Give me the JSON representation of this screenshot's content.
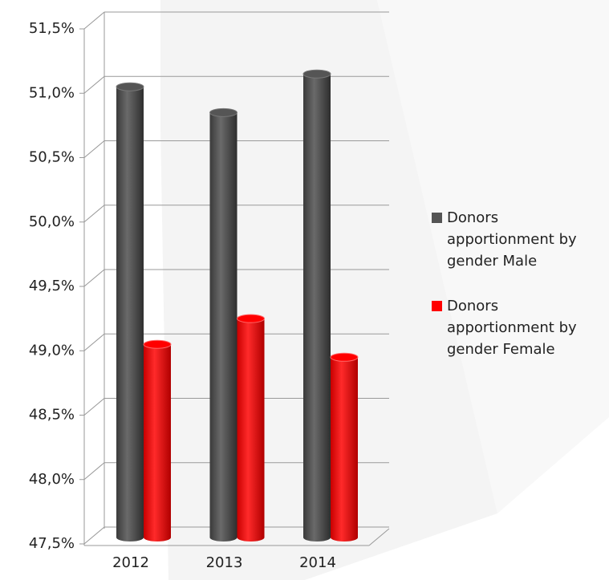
{
  "chart_data": {
    "type": "bar3d",
    "categories": [
      "2012",
      "2013",
      "2014"
    ],
    "series": [
      {
        "name": "Donors apportionment by gender Male",
        "color": "#555555",
        "values": [
          51.0,
          50.8,
          51.1
        ]
      },
      {
        "name": "Donors apportionment by gender Female",
        "color": "#ff0000",
        "values": [
          49.0,
          49.2,
          48.9
        ]
      }
    ],
    "ylim": [
      47.5,
      51.5
    ],
    "yticks": [
      {
        "value": 47.5,
        "label": "47,5%"
      },
      {
        "value": 48.0,
        "label": "48,0%"
      },
      {
        "value": 48.5,
        "label": "48,5%"
      },
      {
        "value": 49.0,
        "label": "49,0%"
      },
      {
        "value": 49.5,
        "label": "49,5%"
      },
      {
        "value": 50.0,
        "label": "50,0%"
      },
      {
        "value": 50.5,
        "label": "50,5%"
      },
      {
        "value": 51.0,
        "label": "51,0%"
      },
      {
        "value": 51.5,
        "label": "51,5%"
      }
    ],
    "grid": true,
    "legend": "right"
  }
}
